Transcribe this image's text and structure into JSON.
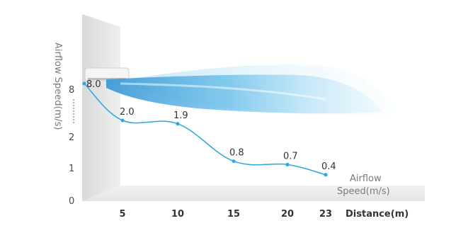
{
  "chart_data": {
    "type": "line",
    "title": "",
    "ylabel": "Airflow  Speed(m/s)",
    "xlabel": "Distance(m)",
    "legend": [
      "Airflow",
      "Speed(m/s)"
    ],
    "y_ticks": [
      "8",
      "2",
      "1",
      "0"
    ],
    "x_tick_labels": [
      "5",
      "10",
      "15",
      "20",
      "23"
    ],
    "series": [
      {
        "x": [
          0,
          5,
          10,
          15,
          20,
          23
        ],
        "y": [
          8.0,
          2.0,
          1.9,
          0.8,
          0.7,
          0.4
        ],
        "labels": [
          "8.0",
          "2.0",
          "1.9",
          "0.8",
          "0.7",
          "0.4"
        ]
      }
    ],
    "colors": {
      "line": "#29a8e0",
      "wall": "#e6e6e6",
      "floor": "#ededed",
      "airflow": "#4aa8dc"
    }
  }
}
